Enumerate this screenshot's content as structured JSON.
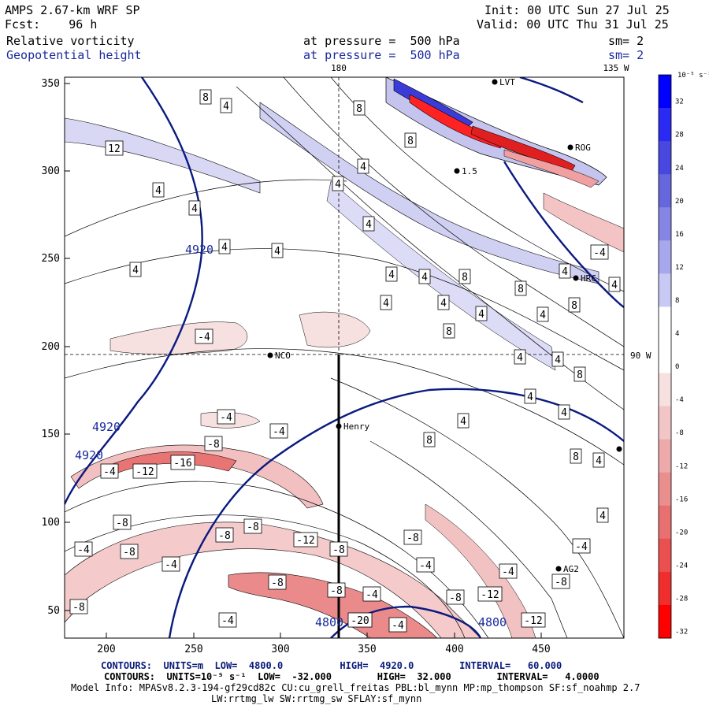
{
  "header": {
    "model_title": "AMPS 2.67-km WRF SP",
    "forecast": "Fcst:    96 h",
    "init_label": "Init: 00 UTC Sun 27 Jul 25",
    "valid_label": "Valid: 00 UTC Thu 31 Jul 25",
    "field1_name": "Relative vorticity",
    "field1_level": "at pressure =  500 hPa",
    "field1_sm": "sm= 2",
    "field2_name": "Geopotential height",
    "field2_level": "at pressure =  500 hPa",
    "field2_sm": "sm= 2"
  },
  "map": {
    "meridian_label": "180",
    "lat_label_top": "135 W",
    "lat_label_right": "90 W",
    "x_ticks": [
      "200",
      "250",
      "300",
      "350",
      "400",
      "450"
    ],
    "y_ticks": [
      "50",
      "100",
      "150",
      "200",
      "250",
      "300",
      "350"
    ],
    "stations": [
      {
        "name": "LVT"
      },
      {
        "name": "ROG"
      },
      {
        "name": "HRC"
      },
      {
        "name": "NCO"
      },
      {
        "name": "Henry"
      },
      {
        "name": "AG2"
      },
      {
        "name": "1.5"
      }
    ],
    "height_labels": [
      "4920",
      "4920",
      "4920",
      "4800",
      "4800"
    ],
    "vort_labels": [
      "8",
      "4",
      "8",
      "12",
      "8",
      "4",
      "4",
      "4",
      "4",
      "4",
      "4",
      "4",
      "4",
      "4",
      "8",
      "4",
      "4",
      "4",
      "8",
      "8",
      "4",
      "4",
      "4",
      "4",
      "8",
      "4",
      "4",
      "8",
      "4",
      "4",
      "4",
      "8",
      "4",
      "8",
      "4",
      "-4",
      "-4",
      "-4",
      "-8",
      "-8",
      "-4",
      "-12",
      "-16",
      "-4",
      "-8",
      "-8",
      "-8",
      "-8",
      "-12",
      "-8",
      "-4",
      "-8",
      "-4",
      "-4",
      "-8",
      "-12",
      "-4",
      "-4",
      "-8",
      "-12",
      "-20",
      "-4",
      "-8",
      "-8",
      "-4",
      "-4"
    ]
  },
  "colorbar": {
    "unit_label": "10⁻⁵ s⁻¹",
    "levels": [
      "32",
      "28",
      "24",
      "20",
      "16",
      "12",
      "8",
      "4",
      "0",
      "-4",
      "-8",
      "-12",
      "-16",
      "-20",
      "-24",
      "-28",
      "-32"
    ],
    "colors": [
      "#0000ff",
      "#2a2af2",
      "#4848e0",
      "#6666dd",
      "#8585e3",
      "#a7a7ee",
      "#c9c9f5",
      "#ffffff",
      "#ffffff",
      "#f7e0e0",
      "#f2c6c6",
      "#eeaaaa",
      "#ea8e8e",
      "#e87070",
      "#ea5050",
      "#f02e2e",
      "#ff0000"
    ]
  },
  "footer": {
    "line1": "CONTOURS:  UNITS=m  LOW=  4800.0          HIGH=  4920.0        INTERVAL=   60.000",
    "line2": "CONTOURS:  UNITS=10⁻⁵ s⁻¹  LOW=  -32.000        HIGH=  32.000        INTERVAL=   4.0000",
    "line3": "Model Info: MPASv8.2.3-194-gf29cd82c CU:cu_grell_freitas PBL:bl_mynn MP:mp_thompson SF:sf_noahmp 2.7",
    "line4": "LW:rrtmg_lw SW:rrtmg_sw SFLAY:sf_mynn"
  }
}
